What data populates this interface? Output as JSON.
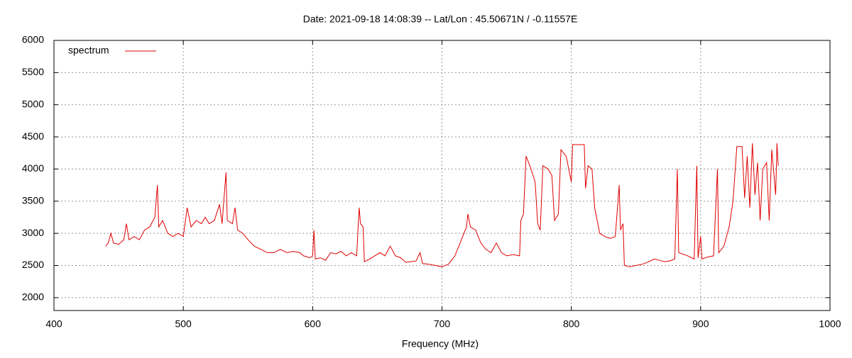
{
  "chart_data": {
    "type": "line",
    "title": "Date: 2021-09-18 14:08:39  --  Lat/Lon : 45.50671N / -0.11557E",
    "xlabel": "Frequency (MHz)",
    "x": [
      440,
      442,
      444,
      446,
      450,
      454,
      456,
      458,
      462,
      466,
      470,
      474,
      478,
      480,
      481,
      484,
      488,
      492,
      496,
      500,
      503,
      506,
      510,
      514,
      517,
      520,
      524,
      528,
      530,
      533,
      534,
      538,
      540,
      542,
      546,
      550,
      555,
      560,
      565,
      570,
      575,
      580,
      585,
      590,
      593,
      598,
      600,
      601,
      602,
      606,
      610,
      614,
      618,
      622,
      626,
      630,
      634,
      636,
      637,
      639,
      640,
      644,
      648,
      652,
      656,
      660,
      664,
      668,
      672,
      676,
      680,
      683,
      685,
      690,
      695,
      700,
      705,
      710,
      715,
      719,
      720,
      722,
      726,
      730,
      734,
      738,
      742,
      746,
      750,
      755,
      760,
      761,
      763,
      765,
      768,
      772,
      774,
      776,
      778,
      782,
      785,
      787,
      790,
      792,
      796,
      800,
      801,
      810,
      811,
      813,
      816,
      818,
      820,
      822,
      826,
      830,
      834,
      837,
      838,
      840,
      841,
      845,
      850,
      855,
      860,
      864,
      868,
      872,
      876,
      880,
      882,
      883,
      890,
      895,
      897,
      898,
      900,
      901,
      905,
      910,
      913,
      914,
      918,
      922,
      925,
      928,
      932,
      934,
      936,
      938,
      940,
      942,
      944,
      946,
      948,
      951,
      953,
      955,
      958,
      959,
      960
    ],
    "series": [
      {
        "name": "spectrum",
        "color": "#e00000",
        "values": [
          2800,
          2850,
          3000,
          2850,
          2830,
          2900,
          3150,
          2900,
          2950,
          2900,
          3050,
          3100,
          3250,
          3750,
          3100,
          3200,
          3000,
          2950,
          3000,
          2950,
          3400,
          3100,
          3200,
          3150,
          3250,
          3150,
          3200,
          3450,
          3150,
          3950,
          3200,
          3150,
          3400,
          3050,
          3000,
          2900,
          2800,
          2750,
          2700,
          2700,
          2750,
          2700,
          2720,
          2700,
          2650,
          2620,
          2650,
          3050,
          2600,
          2620,
          2580,
          2700,
          2680,
          2720,
          2650,
          2700,
          2650,
          3400,
          3150,
          3100,
          2560,
          2600,
          2650,
          2700,
          2650,
          2800,
          2650,
          2620,
          2550,
          2560,
          2570,
          2700,
          2530,
          2520,
          2500,
          2480,
          2520,
          2650,
          2900,
          3100,
          3300,
          3100,
          3050,
          2850,
          2750,
          2700,
          2850,
          2700,
          2650,
          2670,
          2650,
          3200,
          3300,
          4200,
          4050,
          3800,
          3150,
          3050,
          4050,
          4000,
          3900,
          3200,
          3300,
          4300,
          4200,
          3800,
          4380,
          4380,
          3700,
          4050,
          4000,
          3400,
          3200,
          3000,
          2950,
          2920,
          2950,
          3750,
          3050,
          3150,
          2500,
          2480,
          2500,
          2520,
          2560,
          2600,
          2580,
          2560,
          2570,
          2600,
          4000,
          2700,
          2650,
          2600,
          4050,
          2620,
          2950,
          2600,
          2630,
          2650,
          4000,
          2700,
          2800,
          3100,
          3500,
          4350,
          4350,
          3550,
          4200,
          3400,
          4400,
          3600,
          4100,
          3200,
          4000,
          4100,
          3200,
          4300,
          3600,
          4400,
          4050
        ]
      }
    ],
    "xlim": [
      400,
      1000
    ],
    "xticks": [
      400,
      500,
      600,
      700,
      800,
      900,
      1000
    ],
    "ylim": [
      1800,
      6000
    ],
    "yticks": [
      2000,
      2500,
      3000,
      3500,
      4000,
      4500,
      5000,
      5500,
      6000
    ],
    "grid": true,
    "legend": "top-left"
  }
}
